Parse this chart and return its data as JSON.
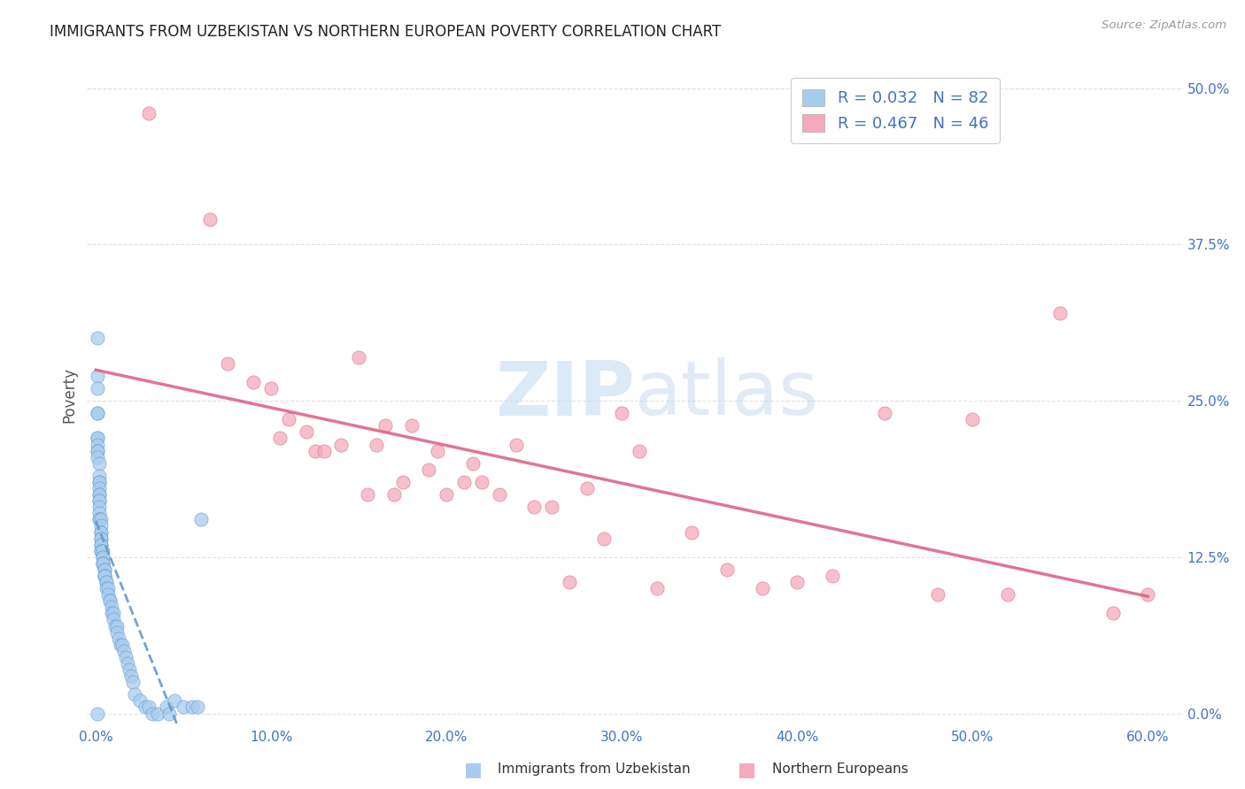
{
  "title": "IMMIGRANTS FROM UZBEKISTAN VS NORTHERN EUROPEAN POVERTY CORRELATION CHART",
  "source": "Source: ZipAtlas.com",
  "xlabel_ticks": [
    "0.0%",
    "10.0%",
    "20.0%",
    "30.0%",
    "40.0%",
    "50.0%",
    "60.0%"
  ],
  "ylabel_ticks": [
    "0.0%",
    "12.5%",
    "25.0%",
    "37.5%",
    "50.0%"
  ],
  "xlabel_vals": [
    0.0,
    0.1,
    0.2,
    0.3,
    0.4,
    0.5,
    0.6
  ],
  "ylabel_vals": [
    0.0,
    0.125,
    0.25,
    0.375,
    0.5
  ],
  "xlim": [
    -0.005,
    0.62
  ],
  "ylim": [
    -0.01,
    0.52
  ],
  "watermark": "ZIPatlas",
  "legend_label1": "Immigrants from Uzbekistan",
  "legend_label2": "Northern Europeans",
  "R1": 0.032,
  "N1": 82,
  "R2": 0.467,
  "N2": 46,
  "color1": "#a8ccee",
  "color2": "#f4aabc",
  "trendline1_color": "#6699cc",
  "trendline2_color": "#dd6688",
  "ylabel": "Poverty",
  "background_color": "#ffffff",
  "grid_color": "#dddddd",
  "title_color": "#222222",
  "axis_tick_color": "#4472c4",
  "legend_R_N_color": "#4472c4",
  "uzbek_x": [
    0.001,
    0.001,
    0.001,
    0.001,
    0.001,
    0.001,
    0.001,
    0.001,
    0.001,
    0.001,
    0.002,
    0.002,
    0.002,
    0.002,
    0.002,
    0.002,
    0.002,
    0.002,
    0.002,
    0.002,
    0.002,
    0.002,
    0.002,
    0.003,
    0.003,
    0.003,
    0.003,
    0.003,
    0.003,
    0.003,
    0.003,
    0.003,
    0.003,
    0.004,
    0.004,
    0.004,
    0.004,
    0.004,
    0.004,
    0.005,
    0.005,
    0.005,
    0.005,
    0.005,
    0.006,
    0.006,
    0.006,
    0.007,
    0.007,
    0.008,
    0.008,
    0.009,
    0.009,
    0.01,
    0.01,
    0.011,
    0.012,
    0.012,
    0.013,
    0.014,
    0.015,
    0.016,
    0.017,
    0.018,
    0.019,
    0.02,
    0.021,
    0.022,
    0.025,
    0.028,
    0.03,
    0.032,
    0.035,
    0.04,
    0.042,
    0.045,
    0.05,
    0.055,
    0.058,
    0.06,
    0.001,
    0.001
  ],
  "uzbek_y": [
    0.27,
    0.26,
    0.24,
    0.24,
    0.22,
    0.22,
    0.215,
    0.21,
    0.21,
    0.205,
    0.2,
    0.19,
    0.185,
    0.185,
    0.18,
    0.175,
    0.175,
    0.17,
    0.17,
    0.165,
    0.16,
    0.155,
    0.155,
    0.155,
    0.15,
    0.145,
    0.145,
    0.14,
    0.14,
    0.135,
    0.135,
    0.13,
    0.13,
    0.13,
    0.125,
    0.125,
    0.12,
    0.12,
    0.12,
    0.115,
    0.115,
    0.11,
    0.11,
    0.11,
    0.105,
    0.105,
    0.1,
    0.1,
    0.095,
    0.09,
    0.09,
    0.085,
    0.08,
    0.08,
    0.075,
    0.07,
    0.07,
    0.065,
    0.06,
    0.055,
    0.055,
    0.05,
    0.045,
    0.04,
    0.035,
    0.03,
    0.025,
    0.015,
    0.01,
    0.005,
    0.005,
    0.0,
    0.0,
    0.005,
    0.0,
    0.01,
    0.005,
    0.005,
    0.005,
    0.155,
    0.3,
    0.0
  ],
  "northern_x": [
    0.03,
    0.065,
    0.075,
    0.09,
    0.1,
    0.105,
    0.11,
    0.12,
    0.125,
    0.13,
    0.14,
    0.15,
    0.155,
    0.16,
    0.165,
    0.17,
    0.175,
    0.18,
    0.19,
    0.195,
    0.2,
    0.21,
    0.215,
    0.22,
    0.23,
    0.24,
    0.25,
    0.26,
    0.27,
    0.28,
    0.29,
    0.3,
    0.31,
    0.32,
    0.34,
    0.36,
    0.38,
    0.4,
    0.42,
    0.45,
    0.48,
    0.5,
    0.52,
    0.55,
    0.58,
    0.6
  ],
  "northern_y": [
    0.48,
    0.395,
    0.28,
    0.265,
    0.26,
    0.22,
    0.235,
    0.225,
    0.21,
    0.21,
    0.215,
    0.285,
    0.175,
    0.215,
    0.23,
    0.175,
    0.185,
    0.23,
    0.195,
    0.21,
    0.175,
    0.185,
    0.2,
    0.185,
    0.175,
    0.215,
    0.165,
    0.165,
    0.105,
    0.18,
    0.14,
    0.24,
    0.21,
    0.1,
    0.145,
    0.115,
    0.1,
    0.105,
    0.11,
    0.24,
    0.095,
    0.235,
    0.095,
    0.32,
    0.08,
    0.095
  ]
}
